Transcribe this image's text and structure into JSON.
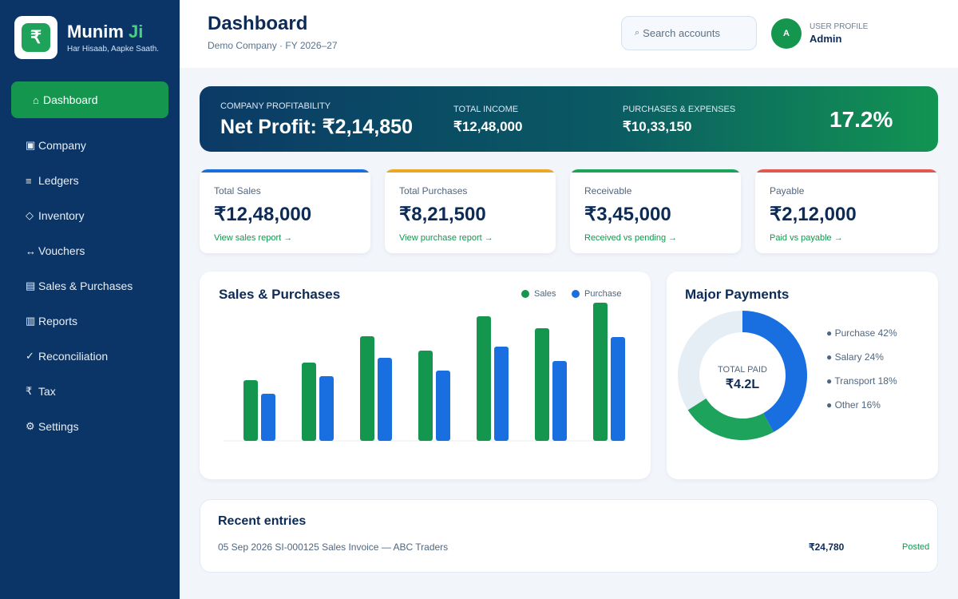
{
  "brand": {
    "logo_glyph": "₹",
    "name_main": "Munim",
    "name_accent": "Ji",
    "tagline": "Har Hisaab, Aapke Saath."
  },
  "sidebar": {
    "items": [
      {
        "icon": "⌂",
        "label": "Dashboard",
        "active": true
      },
      {
        "icon": "▣",
        "label": "Company"
      },
      {
        "icon": "≡",
        "label": "Ledgers"
      },
      {
        "icon": "◇",
        "label": "Inventory"
      },
      {
        "icon": "↔",
        "label": "Vouchers"
      },
      {
        "icon": "▤",
        "label": "Sales & Purchases"
      },
      {
        "icon": "▥",
        "label": "Reports"
      },
      {
        "icon": "✓",
        "label": "Reconciliation"
      },
      {
        "icon": "₹",
        "label": "Tax"
      },
      {
        "icon": "⚙",
        "label": "Settings"
      }
    ]
  },
  "header": {
    "title": "Dashboard",
    "subtitle": "Demo Company · FY 2026–27",
    "search_icon": "⌕",
    "search_placeholder": "Search accounts",
    "avatar_initial": "A",
    "user_label": "USER PROFILE",
    "user_name": "Admin"
  },
  "banner": {
    "profit_caption": "COMPANY PROFITABILITY",
    "profit_value": "Net Profit: ₹2,14,850",
    "income_caption": "TOTAL INCOME",
    "income_value": "₹12,48,000",
    "expense_caption": "PURCHASES & EXPENSES",
    "expense_value": "₹10,33,150",
    "margin": "17.2%"
  },
  "cards": [
    {
      "label": "Total Sales",
      "value": "₹12,48,000",
      "link": "View sales report →",
      "color": "#1a6fe0"
    },
    {
      "label": "Total Purchases",
      "value": "₹8,21,500",
      "link": "View purchase report →",
      "color": "#e9a825"
    },
    {
      "label": "Receivable",
      "value": "₹3,45,000",
      "link": "Received vs pending →",
      "color": "#1ea35d"
    },
    {
      "label": "Payable",
      "value": "₹2,12,000",
      "link": "Paid vs payable →",
      "color": "#e0584f"
    }
  ],
  "sales_panel": {
    "title": "Sales & Purchases",
    "legend_sales": "Sales",
    "legend_purchase": "Purchase"
  },
  "payments_panel": {
    "title": "Major Payments",
    "center_caption": "TOTAL PAID",
    "center_value": "₹4.2L",
    "legend": [
      "● Purchase 42%",
      "● Salary 24%",
      "● Transport 18%",
      "● Other 16%"
    ]
  },
  "recent": {
    "title": "Recent entries",
    "rows": [
      {
        "description": "05 Sep 2026 SI-000125 Sales Invoice — ABC Traders",
        "amount": "₹24,780",
        "status": "Posted"
      }
    ]
  },
  "chart_data": [
    {
      "type": "bar",
      "categories": [
        "",
        "",
        "",
        "",
        "",
        "",
        ""
      ],
      "series": [
        {
          "name": "Sales",
          "values": [
            76,
            98,
            131,
            113,
            156,
            141,
            173
          ]
        },
        {
          "name": "Purchase",
          "values": [
            59,
            81,
            104,
            88,
            118,
            100,
            130
          ]
        }
      ],
      "colors": [
        "#14964f",
        "#1a6fe0"
      ],
      "ylim": [
        0,
        180
      ],
      "grid": false,
      "legend": "top-right"
    },
    {
      "type": "pie",
      "categories": [
        "Purchase",
        "Salary",
        "Transport",
        "Other"
      ],
      "values": [
        42,
        24,
        18,
        16
      ],
      "colors": [
        "#1a6fe0",
        "#1ea35d",
        "#e5edf5",
        "#e5edf5"
      ],
      "title": ""
    }
  ]
}
